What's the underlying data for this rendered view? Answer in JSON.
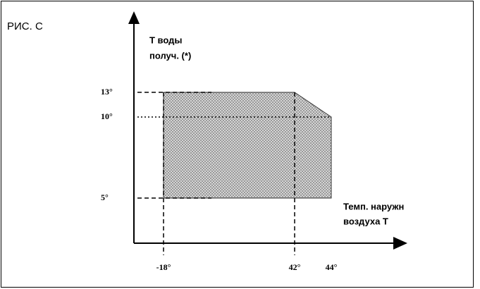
{
  "chart_data": {
    "type": "area",
    "title": "РИС. C",
    "ylabel": [
      "T воды",
      "получ. (*)"
    ],
    "xlabel": [
      "Темп. наружн",
      "воздуха T"
    ],
    "x": [
      -18,
      -18,
      42,
      44,
      44
    ],
    "values": [
      5,
      13,
      13,
      10,
      5
    ],
    "color": "#b8b8b8",
    "xticks": [
      {
        "value": -18,
        "label": "-18°"
      },
      {
        "value": 42,
        "label": "42°"
      },
      {
        "value": 44,
        "label": "44°"
      }
    ],
    "yticks": [
      {
        "value": 5,
        "label": "5°"
      },
      {
        "value": 10,
        "label": "10°"
      },
      {
        "value": 13,
        "label": "13°"
      }
    ]
  }
}
